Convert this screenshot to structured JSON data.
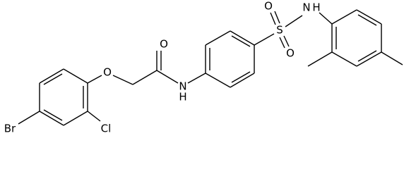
{
  "atoms": [
    "Br",
    "Cl",
    "O",
    "O",
    "N",
    "H",
    "S",
    "O",
    "O",
    "N",
    "H"
  ]
}
